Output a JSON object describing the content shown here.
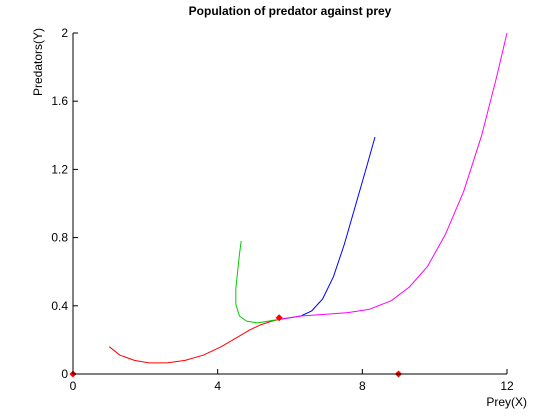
{
  "chart_data": {
    "type": "line",
    "title": "Population of predator against prey",
    "xlabel": "Prey(X)",
    "ylabel": "Predators(Y)",
    "xlim": [
      0,
      12
    ],
    "ylim": [
      0,
      2
    ],
    "x_ticks": [
      0,
      4,
      8,
      12
    ],
    "x_tick_labels": [
      "0",
      "4",
      "8",
      "12"
    ],
    "y_ticks": [
      0,
      0.4,
      0.8,
      1.2,
      1.6,
      2
    ],
    "y_tick_labels": [
      "0",
      "0.4",
      "0.8",
      "1.2",
      "1.6",
      "2"
    ],
    "grid": false,
    "legend": false,
    "series": [
      {
        "color": "#ff0000",
        "x": [
          1.0,
          1.3,
          1.7,
          2.1,
          2.6,
          3.1,
          3.6,
          4.1,
          4.5,
          4.9,
          5.2,
          5.5,
          5.7
        ],
        "y": [
          0.16,
          0.11,
          0.08,
          0.065,
          0.065,
          0.08,
          0.11,
          0.16,
          0.21,
          0.26,
          0.29,
          0.31,
          0.32
        ]
      },
      {
        "color": "#00cc00",
        "x": [
          4.65,
          4.6,
          4.55,
          4.5,
          4.5,
          4.6,
          4.8,
          5.1,
          5.4,
          5.7
        ],
        "y": [
          0.78,
          0.7,
          0.6,
          0.5,
          0.41,
          0.34,
          0.31,
          0.3,
          0.31,
          0.32
        ]
      },
      {
        "color": "#0000ff",
        "x": [
          5.7,
          6.0,
          6.3,
          6.6,
          6.9,
          7.2,
          7.5,
          7.8,
          8.1,
          8.35
        ],
        "y": [
          0.32,
          0.33,
          0.34,
          0.37,
          0.44,
          0.57,
          0.76,
          0.98,
          1.2,
          1.39
        ]
      },
      {
        "color": "#ff00ff",
        "x": [
          5.7,
          6.3,
          7.0,
          7.6,
          8.2,
          8.8,
          9.3,
          9.8,
          10.3,
          10.8,
          11.3,
          11.7,
          12.0
        ],
        "y": [
          0.32,
          0.34,
          0.35,
          0.36,
          0.38,
          0.43,
          0.51,
          0.63,
          0.82,
          1.07,
          1.4,
          1.73,
          2.0
        ]
      }
    ],
    "points": [
      {
        "x": 0,
        "y": 0,
        "color": "#ff0000"
      },
      {
        "x": 5.7,
        "y": 0.33,
        "color": "#ff0000"
      },
      {
        "x": 9.0,
        "y": 0,
        "color": "#ff0000"
      }
    ]
  }
}
